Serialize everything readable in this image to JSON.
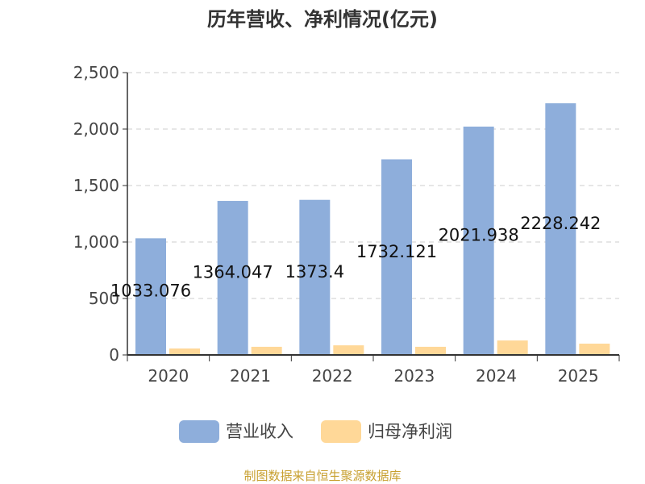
{
  "chart_data": {
    "type": "bar",
    "title": "历年营收、净利情况(亿元)",
    "categories": [
      "2020",
      "2021",
      "2022",
      "2023",
      "2024",
      "2025"
    ],
    "series": [
      {
        "name": "营业收入",
        "color": "#8eaedb",
        "values": [
          1033.076,
          1364.047,
          1373.4,
          1732.121,
          2021.938,
          2228.242
        ],
        "labels": [
          "1033.076",
          "1364.047",
          "1373.4",
          "1732.121",
          "2021.938",
          "2228.242"
        ]
      },
      {
        "name": "归母净利润",
        "color": "#ffd898",
        "values": [
          57,
          72,
          85,
          72,
          128,
          100
        ]
      }
    ],
    "ylim": [
      0,
      2500
    ],
    "yticks": [
      0,
      500,
      1000,
      1500,
      2000,
      2500
    ],
    "ytick_labels": [
      "0",
      "500",
      "1,000",
      "1,500",
      "2,000",
      "2,500"
    ],
    "grid": true,
    "legend_position": "bottom"
  },
  "footer": "制图数据来自恒生聚源数据库"
}
